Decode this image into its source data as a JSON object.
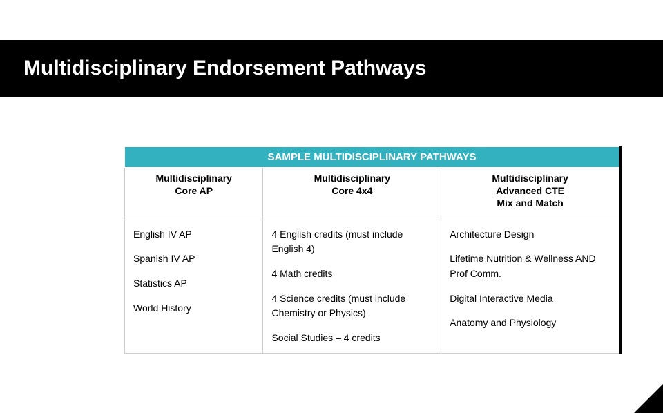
{
  "title": "Multidisciplinary Endorsement Pathways",
  "table": {
    "header": "SAMPLE MULTIDISCIPLINARY PATHWAYS",
    "columns": [
      {
        "label": "Multidisciplinary\nCore AP"
      },
      {
        "label": "Multidisciplinary\nCore 4x4"
      },
      {
        "label": "Multidisciplinary\nAdvanced CTE\nMix and Match"
      }
    ],
    "body": {
      "col1": [
        "English IV AP",
        "Spanish IV AP",
        "Statistics AP",
        "World History"
      ],
      "col2": [
        "4 English credits (must include English 4)",
        "4 Math credits",
        "4 Science credits (must include Chemistry or Physics)",
        "Social Studies – 4 credits"
      ],
      "col3": [
        "Architecture Design",
        "Lifetime Nutrition & Wellness AND Prof Comm.",
        "Digital Interactive Media",
        "Anatomy and Physiology"
      ]
    },
    "col_widths": [
      "28%",
      "36%",
      "36%"
    ],
    "header_bg": "#33b1bf",
    "header_fg": "#ffffff",
    "border_color": "#cccccc"
  },
  "title_band_bg": "#000000",
  "background": "#ffffff"
}
